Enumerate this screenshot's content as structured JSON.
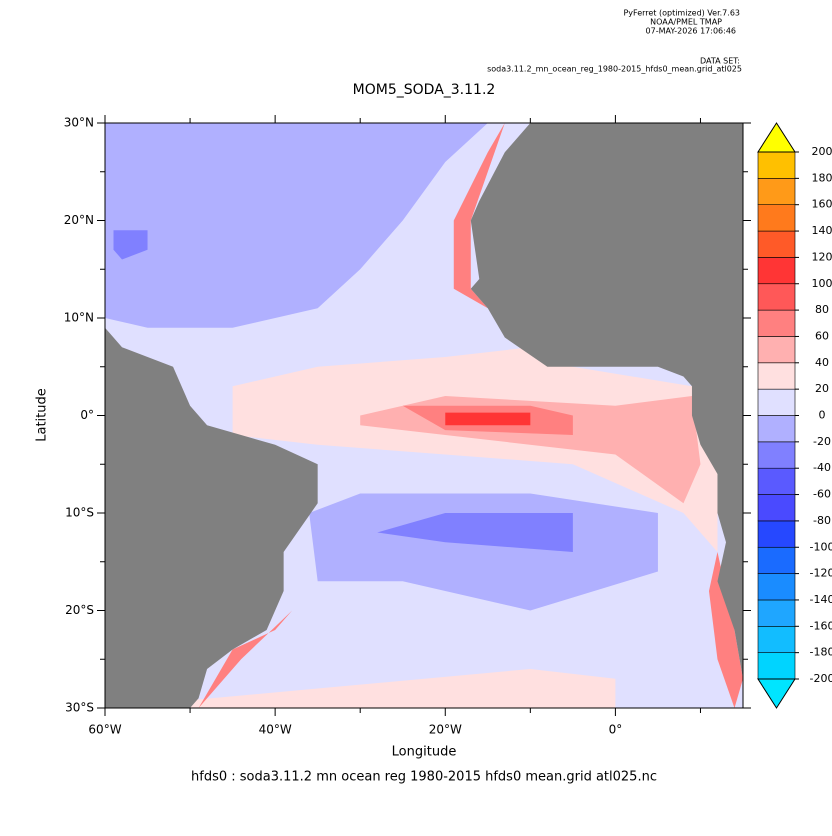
{
  "header": {
    "software": "PyFerret (optimized) Ver.7.63",
    "org": "NOAA/PMEL TMAP",
    "date": "07-MAY-2026 17:06:46",
    "dataset_label": "DATA SET:",
    "dataset": "soda3.11.2_mn_ocean_reg_1980-2015_hfds0_mean.grid_atl025"
  },
  "chart_data": {
    "type": "map",
    "title": "MOM5_SODA_3.11.2",
    "x_label": "Longitude",
    "y_label": "Latitude",
    "footer": "hfds0 : soda3.11.2 mn ocean reg 1980-2015 hfds0 mean.grid atl025.nc",
    "xlim": [
      -60,
      15
    ],
    "ylim": [
      -30,
      30
    ],
    "xticks": [
      {
        "value": -60,
        "label": "60°W"
      },
      {
        "value": -40,
        "label": "40°W"
      },
      {
        "value": -20,
        "label": "20°W"
      },
      {
        "value": 0,
        "label": "0°"
      }
    ],
    "xminor_ticks": [
      -50,
      -30,
      -10,
      10
    ],
    "yticks": [
      {
        "value": 30,
        "label": "30°N"
      },
      {
        "value": 20,
        "label": "20°N"
      },
      {
        "value": 10,
        "label": "10°N"
      },
      {
        "value": 0,
        "label": "0°"
      },
      {
        "value": -10,
        "label": "10°S"
      },
      {
        "value": -20,
        "label": "20°S"
      },
      {
        "value": -30,
        "label": "30°S"
      }
    ],
    "yminor_ticks": [
      25,
      15,
      5,
      -5,
      -15,
      -25
    ],
    "land_color": "#808080",
    "colorbar": {
      "levels": [
        -200,
        -180,
        -160,
        -140,
        -120,
        -100,
        -80,
        -60,
        -40,
        -20,
        0,
        20,
        40,
        60,
        80,
        100,
        120,
        140,
        160,
        180,
        200
      ],
      "colors": [
        "#00e5ff",
        "#00d4ff",
        "#12bdff",
        "#1fa6ff",
        "#1a8cff",
        "#1a6bff",
        "#2648ff",
        "#4a4aff",
        "#5a5aff",
        "#8080ff",
        "#b0b0ff",
        "#e0e0ff",
        "#ffe0e0",
        "#ffb0b0",
        "#ff8080",
        "#ff5858",
        "#ff3535",
        "#ff5a28",
        "#ff7a1c",
        "#ff9a18",
        "#ffc000",
        "#ffff00"
      ]
    }
  }
}
